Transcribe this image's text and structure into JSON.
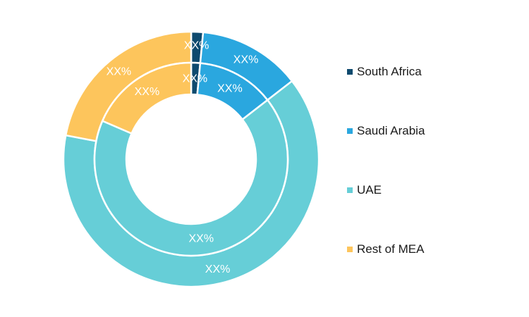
{
  "chart_data": {
    "type": "donut",
    "rings": [
      {
        "ring": "outer",
        "values": [
          1.5,
          13.0,
          63.5,
          22.0
        ],
        "labels": [
          "XX%",
          "XX%",
          "XX%",
          "XX%"
        ]
      },
      {
        "ring": "inner",
        "values": [
          1.5,
          13.0,
          67.0,
          18.5
        ],
        "labels": [
          "XX%",
          "XX%",
          "XX%",
          "XX%"
        ]
      }
    ],
    "categories": [
      "South Africa",
      "Saudi Arabia",
      "UAE",
      "Rest of MEA"
    ],
    "colors": [
      "#0e4a6e",
      "#2aa7df",
      "#66ced7",
      "#fdc55c"
    ],
    "legend_placement": "right"
  }
}
